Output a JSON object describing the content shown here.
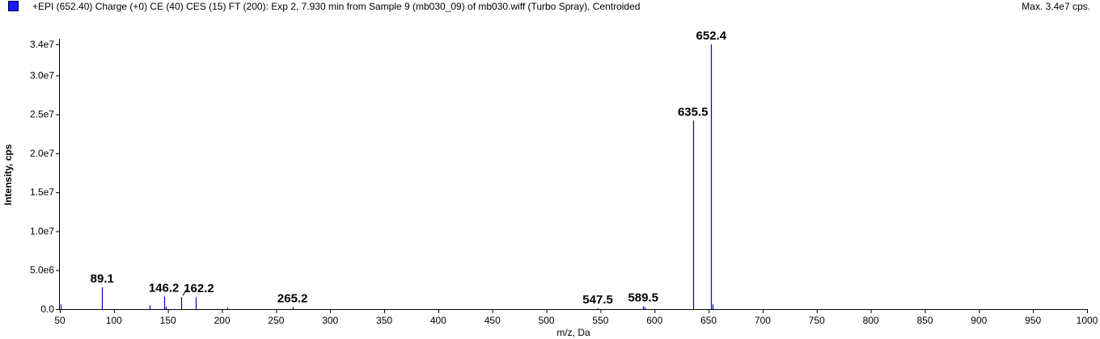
{
  "header": {
    "title": "+EPI (652.40) Charge (+0) CE (40) CES (15) FT (200): Exp 2, 7.930 min from Sample 9 (mb030_09) of mb030.wiff (Turbo Spray), Centroided",
    "max_label": "Max. 3.4e7 cps."
  },
  "colors": {
    "series": "#0000cc",
    "swatch": "#1a1aff",
    "axis": "#000000"
  },
  "chart_data": {
    "type": "bar",
    "title": "+EPI (652.40) Charge (+0) CE (40) CES (15) FT (200): Exp 2, 7.930 min from Sample 9 (mb030_09) of mb030.wiff (Turbo Spray), Centroided",
    "xlabel": "m/z, Da",
    "ylabel": "Intensity, cps",
    "xlim": [
      50,
      1000
    ],
    "ylim": [
      0,
      34500000
    ],
    "grid": false,
    "x_ticks": [
      {
        "value": 50,
        "label": "50"
      },
      {
        "value": 100,
        "label": "100"
      },
      {
        "value": 150,
        "label": "150"
      },
      {
        "value": 200,
        "label": "200"
      },
      {
        "value": 250,
        "label": "250"
      },
      {
        "value": 300,
        "label": "300"
      },
      {
        "value": 350,
        "label": "350"
      },
      {
        "value": 400,
        "label": "400"
      },
      {
        "value": 450,
        "label": "450"
      },
      {
        "value": 500,
        "label": "500"
      },
      {
        "value": 550,
        "label": "550"
      },
      {
        "value": 600,
        "label": "600"
      },
      {
        "value": 650,
        "label": "650"
      },
      {
        "value": 700,
        "label": "700"
      },
      {
        "value": 750,
        "label": "750"
      },
      {
        "value": 800,
        "label": "800"
      },
      {
        "value": 850,
        "label": "850"
      },
      {
        "value": 900,
        "label": "900"
      },
      {
        "value": 950,
        "label": "950"
      },
      {
        "value": 1000,
        "label": "1000"
      }
    ],
    "y_ticks": [
      {
        "value": 0,
        "label": "0.0"
      },
      {
        "value": 5000000,
        "label": "5.0e6"
      },
      {
        "value": 10000000,
        "label": "1.0e7"
      },
      {
        "value": 15000000,
        "label": "1.5e7"
      },
      {
        "value": 20000000,
        "label": "2.0e7"
      },
      {
        "value": 25000000,
        "label": "2.5e7"
      },
      {
        "value": 30000000,
        "label": "3.0e7"
      },
      {
        "value": 34000000,
        "label": "3.4e7"
      }
    ],
    "peaks": [
      {
        "mz": 50.5,
        "intensity": 600000
      },
      {
        "mz": 89.1,
        "intensity": 2800000
      },
      {
        "mz": 133,
        "intensity": 500000
      },
      {
        "mz": 146.2,
        "intensity": 1600000
      },
      {
        "mz": 148,
        "intensity": 300000
      },
      {
        "mz": 162.2,
        "intensity": 1550000
      },
      {
        "mz": 176,
        "intensity": 1500000
      },
      {
        "mz": 205,
        "intensity": 200000
      },
      {
        "mz": 265.2,
        "intensity": 250000
      },
      {
        "mz": 547.5,
        "intensity": 100000
      },
      {
        "mz": 589.5,
        "intensity": 350000
      },
      {
        "mz": 591,
        "intensity": 250000
      },
      {
        "mz": 635.5,
        "intensity": 24200000
      },
      {
        "mz": 652.4,
        "intensity": 34000000
      },
      {
        "mz": 653.4,
        "intensity": 600000
      }
    ],
    "annotations": [
      {
        "text": "89.1",
        "mz": 89.1,
        "intensity": 2800000,
        "dx": 0,
        "leader": false
      },
      {
        "text": "146.2",
        "mz": 146.2,
        "intensity": 1600000,
        "dx": 0,
        "leader": false
      },
      {
        "text": "162.2",
        "mz": 162.2,
        "intensity": 1550000,
        "dx": 22,
        "leader": true
      },
      {
        "text": "265.2",
        "mz": 265.2,
        "intensity": 250000,
        "dx": 0,
        "leader": false
      },
      {
        "text": "547.5",
        "mz": 547.5,
        "intensity": 100000,
        "dx": 0,
        "leader": false
      },
      {
        "text": "589.5",
        "mz": 589.5,
        "intensity": 350000,
        "dx": 0,
        "leader": false
      },
      {
        "text": "635.5",
        "mz": 635.5,
        "intensity": 24200000,
        "dx": 0,
        "leader": false
      },
      {
        "text": "652.4",
        "mz": 652.4,
        "intensity": 34000000,
        "dx": 0,
        "leader": false
      }
    ]
  }
}
